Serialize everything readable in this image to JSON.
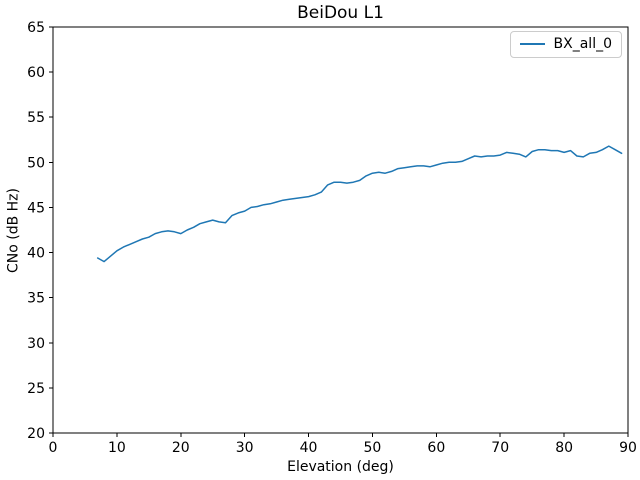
{
  "chart_data": {
    "type": "line",
    "title": "BeiDou L1",
    "xlabel": "Elevation (deg)",
    "ylabel": "CNo (dB Hz)",
    "xlim": [
      0,
      90
    ],
    "ylim": [
      20,
      65
    ],
    "xticks": [
      0,
      10,
      20,
      30,
      40,
      50,
      60,
      70,
      80,
      90
    ],
    "yticks": [
      20,
      25,
      30,
      35,
      40,
      45,
      50,
      55,
      60,
      65
    ],
    "grid": false,
    "legend": {
      "position": "upper-right",
      "entries": [
        {
          "label": "BX_all_0",
          "color": "#1f77b4"
        }
      ]
    },
    "series": [
      {
        "name": "BX_all_0",
        "color": "#1f77b4",
        "x": [
          7,
          8,
          9,
          10,
          11,
          12,
          13,
          14,
          15,
          16,
          17,
          18,
          19,
          20,
          21,
          22,
          23,
          24,
          25,
          26,
          27,
          28,
          29,
          30,
          31,
          32,
          33,
          34,
          35,
          36,
          37,
          38,
          39,
          40,
          41,
          42,
          43,
          44,
          45,
          46,
          47,
          48,
          49,
          50,
          51,
          52,
          53,
          54,
          55,
          56,
          57,
          58,
          59,
          60,
          61,
          62,
          63,
          64,
          65,
          66,
          67,
          68,
          69,
          70,
          71,
          72,
          73,
          74,
          75,
          76,
          77,
          78,
          79,
          80,
          81,
          82,
          83,
          84,
          85,
          86,
          87,
          88,
          89
        ],
        "y": [
          39.4,
          39.0,
          39.6,
          40.2,
          40.6,
          40.9,
          41.2,
          41.5,
          41.7,
          42.1,
          42.3,
          42.4,
          42.3,
          42.1,
          42.5,
          42.8,
          43.2,
          43.4,
          43.6,
          43.4,
          43.3,
          44.1,
          44.4,
          44.6,
          45.0,
          45.1,
          45.3,
          45.4,
          45.6,
          45.8,
          45.9,
          46.0,
          46.1,
          46.2,
          46.4,
          46.7,
          47.5,
          47.8,
          47.8,
          47.7,
          47.8,
          48.0,
          48.5,
          48.8,
          48.9,
          48.8,
          49.0,
          49.3,
          49.4,
          49.5,
          49.6,
          49.6,
          49.5,
          49.7,
          49.9,
          50.0,
          50.0,
          50.1,
          50.4,
          50.7,
          50.6,
          50.7,
          50.7,
          50.8,
          51.1,
          51.0,
          50.9,
          50.6,
          51.2,
          51.4,
          51.4,
          51.3,
          51.3,
          51.1,
          51.3,
          50.7,
          50.6,
          51.0,
          51.1,
          51.4,
          51.8,
          51.4,
          51.0
        ]
      }
    ]
  },
  "colors": {
    "line": "#1f77b4",
    "axis": "#000000",
    "background": "#ffffff",
    "legend_border": "#cccccc"
  }
}
